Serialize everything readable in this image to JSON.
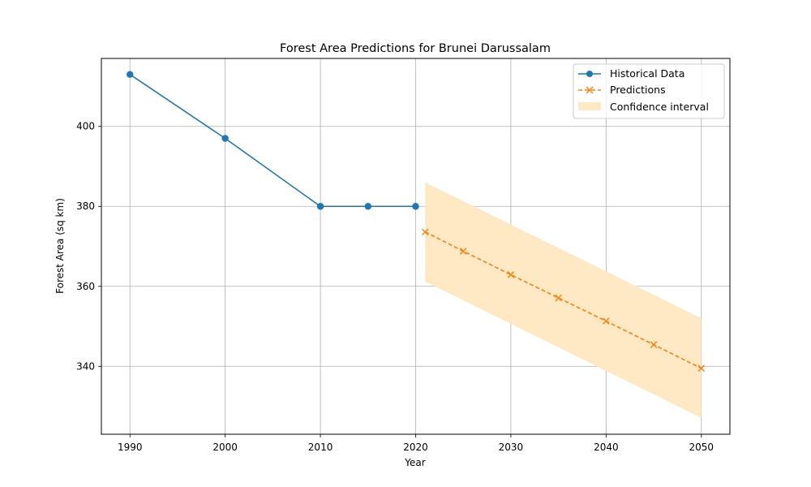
{
  "chart_data": {
    "type": "line",
    "title": "Forest Area Predictions for Brunei Darussalam",
    "xlabel": "Year",
    "ylabel": "Forest Area (sq km)",
    "xlim": [
      1987,
      2053
    ],
    "ylim": [
      323,
      417
    ],
    "x_ticks": [
      1990,
      2000,
      2010,
      2020,
      2030,
      2040,
      2050
    ],
    "y_ticks": [
      340,
      360,
      380,
      400
    ],
    "grid": true,
    "legend_position": "top-right",
    "colors": {
      "historical": "#1f77b4",
      "predictions": "#ff7f0e",
      "confidence": "#ffe9c4"
    },
    "series": [
      {
        "name": "Historical Data",
        "style": "solid-circle",
        "x": [
          1990,
          2000,
          2010,
          2015,
          2020
        ],
        "y": [
          413.0,
          397.0,
          380.0,
          380.0,
          380.0
        ]
      },
      {
        "name": "Predictions",
        "style": "dashed-x",
        "x": [
          2021,
          2025,
          2030,
          2035,
          2040,
          2045,
          2050
        ],
        "y": [
          373.6,
          368.8,
          362.9,
          357.1,
          351.3,
          345.4,
          339.5
        ]
      }
    ],
    "confidence_interval": {
      "name": "Confidence interval",
      "x": [
        2021,
        2050
      ],
      "lower": [
        361.2,
        327.1
      ],
      "upper": [
        386.0,
        352.0
      ]
    }
  }
}
